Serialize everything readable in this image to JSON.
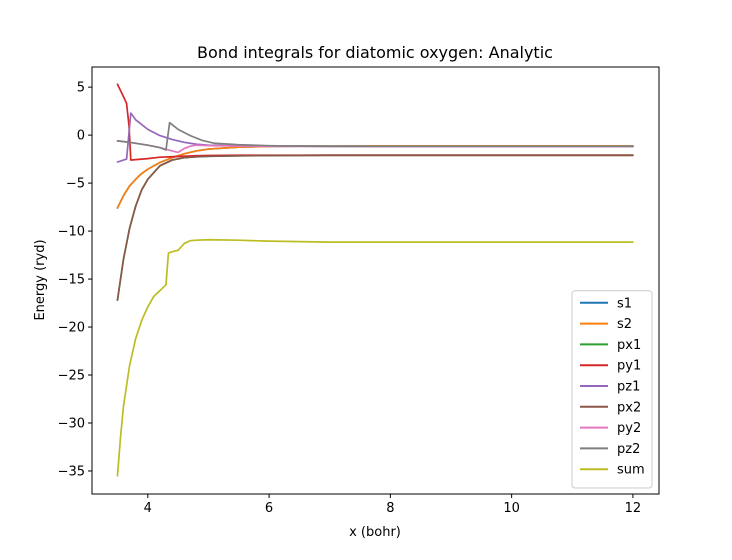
{
  "chart_data": {
    "type": "line",
    "title": "Bond integrals for diatomic oxygen: Analytic",
    "xlabel": "x (bohr)",
    "ylabel": "Energy (ryd)",
    "xlim": [
      3.08,
      12.43
    ],
    "ylim": [
      -37.4,
      7.1
    ],
    "xticks": [
      4,
      6,
      8,
      10,
      12
    ],
    "xtick_labels": [
      "4",
      "6",
      "8",
      "10",
      "12"
    ],
    "yticks": [
      5,
      0,
      -5,
      -10,
      -15,
      -20,
      -25,
      -30,
      -35
    ],
    "ytick_labels": [
      "5",
      "0",
      "−5",
      "−10",
      "−15",
      "−20",
      "−25",
      "−30",
      "−35"
    ],
    "grid": false,
    "legend_position": "lower right",
    "series": [
      {
        "name": "s1",
        "color": "#1f77b4",
        "x": [
          3.5,
          3.6,
          3.7,
          3.8,
          3.9,
          4.0,
          4.2,
          4.4,
          4.6,
          4.8,
          5.0,
          5.5,
          6.0,
          6.5,
          7.0,
          8.0,
          9.0,
          10.0,
          11.0,
          12.0
        ],
        "y": [
          -7.6,
          -6.3,
          -5.3,
          -4.6,
          -4.0,
          -3.55,
          -2.85,
          -2.35,
          -1.95,
          -1.65,
          -1.45,
          -1.25,
          -1.18,
          -1.15,
          -1.14,
          -1.13,
          -1.13,
          -1.13,
          -1.13,
          -1.13
        ]
      },
      {
        "name": "s2",
        "color": "#ff7f0e",
        "x": [
          3.5,
          3.6,
          3.7,
          3.8,
          3.9,
          4.0,
          4.2,
          4.4,
          4.6,
          4.8,
          5.0,
          5.5,
          6.0,
          6.5,
          7.0,
          8.0,
          9.0,
          10.0,
          11.0,
          12.0
        ],
        "y": [
          -7.6,
          -6.3,
          -5.3,
          -4.6,
          -4.0,
          -3.55,
          -2.85,
          -2.35,
          -1.95,
          -1.65,
          -1.45,
          -1.25,
          -1.18,
          -1.15,
          -1.14,
          -1.13,
          -1.13,
          -1.13,
          -1.13,
          -1.13
        ]
      },
      {
        "name": "px1",
        "color": "#2ca02c",
        "x": [
          3.5,
          3.6,
          3.7,
          3.8,
          3.9,
          4.0,
          4.2,
          4.4,
          4.6,
          4.8,
          5.0,
          5.5,
          6.0,
          7.0,
          8.0,
          9.0,
          10.0,
          11.0,
          12.0
        ],
        "y": [
          -17.2,
          -12.9,
          -9.7,
          -7.4,
          -5.7,
          -4.6,
          -3.2,
          -2.6,
          -2.35,
          -2.25,
          -2.2,
          -2.15,
          -2.12,
          -2.1,
          -2.1,
          -2.1,
          -2.1,
          -2.1,
          -2.1
        ]
      },
      {
        "name": "py1",
        "color": "#d62728",
        "x": [
          3.5,
          3.6,
          3.65,
          3.69,
          3.72,
          3.8,
          4.0,
          4.2,
          4.4,
          4.6,
          4.8,
          5.0,
          5.5,
          6.0,
          7.0,
          8.0,
          9.0,
          10.0,
          11.0,
          12.0
        ],
        "y": [
          5.3,
          4.0,
          3.3,
          1.0,
          -2.6,
          -2.55,
          -2.45,
          -2.3,
          -2.25,
          -2.2,
          -2.15,
          -2.12,
          -2.1,
          -2.1,
          -2.1,
          -2.1,
          -2.1,
          -2.1,
          -2.1,
          -2.1
        ]
      },
      {
        "name": "pz1",
        "color": "#9467bd",
        "x": [
          3.5,
          3.6,
          3.65,
          3.72,
          3.8,
          4.0,
          4.2,
          4.4,
          4.6,
          4.8,
          5.0,
          5.5,
          6.0,
          6.5,
          7.0,
          8.0,
          9.0,
          10.0,
          11.0,
          12.0
        ],
        "y": [
          -2.8,
          -2.6,
          -2.5,
          2.3,
          1.6,
          0.6,
          -0.05,
          -0.45,
          -0.75,
          -0.95,
          -1.05,
          -1.12,
          -1.15,
          -1.16,
          -1.17,
          -1.17,
          -1.17,
          -1.17,
          -1.17,
          -1.17
        ]
      },
      {
        "name": "px2",
        "color": "#8c564b",
        "x": [
          3.5,
          3.6,
          3.7,
          3.8,
          3.9,
          4.0,
          4.2,
          4.4,
          4.6,
          4.8,
          5.0,
          5.5,
          6.0,
          7.0,
          8.0,
          9.0,
          10.0,
          11.0,
          12.0
        ],
        "y": [
          -17.2,
          -12.9,
          -9.7,
          -7.4,
          -5.7,
          -4.6,
          -3.2,
          -2.6,
          -2.35,
          -2.25,
          -2.2,
          -2.15,
          -2.12,
          -2.1,
          -2.1,
          -2.1,
          -2.1,
          -2.1,
          -2.1
        ]
      },
      {
        "name": "py2",
        "color": "#e377c2",
        "x": [
          3.5,
          3.7,
          4.0,
          4.2,
          4.4,
          4.5,
          4.6,
          4.7,
          4.8,
          5.0,
          5.5,
          6.0,
          7.0,
          8.0,
          9.0,
          10.0,
          11.0,
          12.0
        ],
        "y": [
          -0.6,
          -0.75,
          -1.05,
          -1.3,
          -1.65,
          -1.8,
          -1.4,
          -1.15,
          -1.05,
          -1.1,
          -1.14,
          -1.16,
          -1.17,
          -1.17,
          -1.17,
          -1.17,
          -1.17,
          -1.17
        ]
      },
      {
        "name": "pz2",
        "color": "#7f7f7f",
        "x": [
          3.5,
          3.7,
          4.0,
          4.2,
          4.3,
          4.36,
          4.5,
          4.7,
          4.9,
          5.1,
          5.5,
          6.0,
          6.5,
          7.0,
          8.0,
          9.0,
          10.0,
          11.0,
          12.0
        ],
        "y": [
          -0.6,
          -0.75,
          -1.05,
          -1.3,
          -1.55,
          1.3,
          0.6,
          -0.05,
          -0.55,
          -0.85,
          -1.0,
          -1.1,
          -1.15,
          -1.16,
          -1.17,
          -1.17,
          -1.17,
          -1.17,
          -1.17
        ]
      },
      {
        "name": "sum",
        "color": "#bcbd22",
        "x": [
          3.5,
          3.55,
          3.6,
          3.7,
          3.8,
          3.9,
          4.0,
          4.1,
          4.2,
          4.3,
          4.34,
          4.4,
          4.5,
          4.6,
          4.7,
          4.8,
          5.0,
          5.5,
          6.0,
          6.5,
          7.0,
          8.0,
          9.0,
          10.0,
          11.0,
          12.0
        ],
        "y": [
          -35.5,
          -31.5,
          -28.2,
          -24.0,
          -21.2,
          -19.3,
          -17.9,
          -16.8,
          -16.2,
          -15.6,
          -12.3,
          -12.15,
          -12.0,
          -11.3,
          -11.0,
          -10.95,
          -10.9,
          -10.95,
          -11.05,
          -11.1,
          -11.15,
          -11.15,
          -11.15,
          -11.15,
          -11.15,
          -11.15
        ]
      }
    ]
  }
}
